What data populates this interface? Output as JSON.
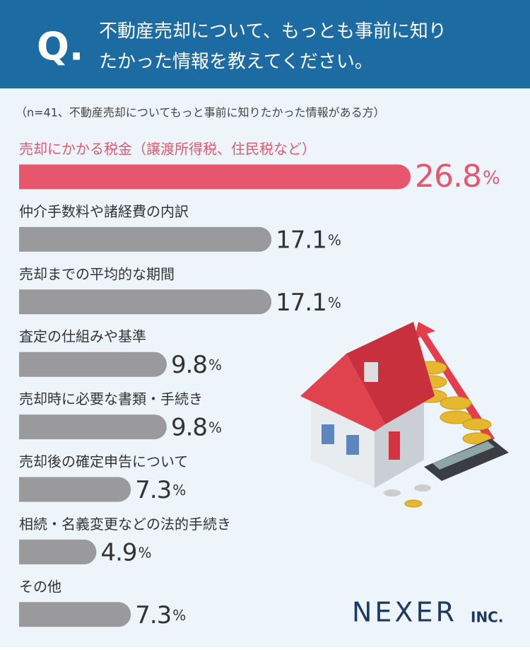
{
  "chart_data": {
    "type": "bar",
    "title_mark": "Q.",
    "title": [
      "不動産売却について、もっとも事前に知り",
      "たかった情報を教えてください。"
    ],
    "subtitle": "（n=41、不動産売却についてもっと事前に知りたかった情報がある方）",
    "categories": [
      "売却にかかる税金（譲渡所得税、住民税など）",
      "仲介手数料や諸経費の内訳",
      "売却までの平均的な期間",
      "査定の仕組みや基準",
      "売却時に必要な書類・手続き",
      "売却後の確定申告について",
      "相続・名義変更などの法的手続き",
      "その他"
    ],
    "values": [
      26.8,
      17.1,
      17.1,
      9.8,
      9.8,
      7.3,
      4.9,
      7.3
    ],
    "value_labels": [
      "26.8%",
      "17.1%",
      "17.1%",
      "9.8%",
      "9.8%",
      "7.3%",
      "4.9%",
      "7.3%"
    ],
    "colors": [
      "#e8566e",
      "#9a9a9c",
      "#9a9a9c",
      "#9a9a9c",
      "#9a9a9c",
      "#9a9a9c",
      "#9a9a9c",
      "#9a9a9c"
    ],
    "logo": "NEXER",
    "logo_suffix": "INC."
  }
}
